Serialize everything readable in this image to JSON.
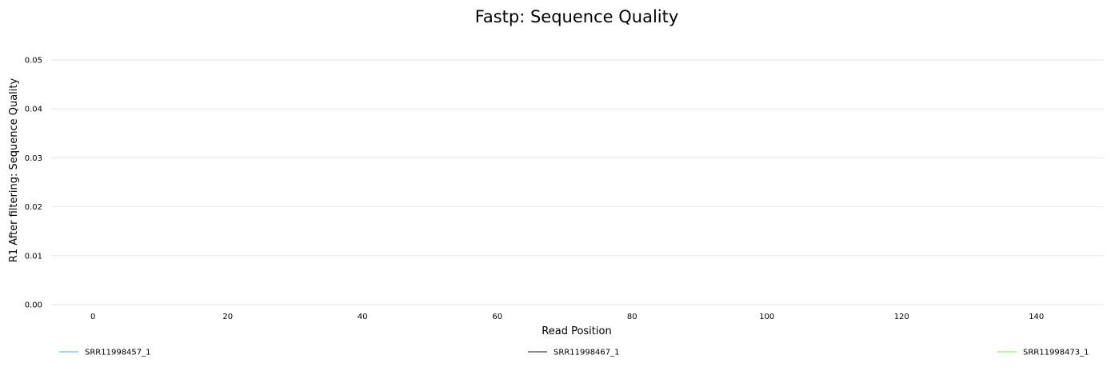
{
  "chart_data": {
    "type": "line",
    "title": "Fastp: Sequence Quality",
    "xlabel": "Read Position",
    "ylabel": "R1 After filtering: Sequence Quality",
    "xlim": [
      -6.2,
      150
    ],
    "ylim": [
      0,
      0.05
    ],
    "xticks": [
      0,
      20,
      40,
      60,
      80,
      100,
      120,
      140
    ],
    "xtick_labels": [
      "0",
      "20",
      "40",
      "60",
      "80",
      "100",
      "120",
      "140"
    ],
    "yticks": [
      0,
      0.01,
      0.02,
      0.03,
      0.04,
      0.05
    ],
    "ytick_labels": [
      "0.00",
      "0.01",
      "0.02",
      "0.03",
      "0.04",
      "0.05"
    ],
    "grid": "horizontal",
    "legend_position": "bottom",
    "series": [
      {
        "name": "SRR11998457_1",
        "color": "#7cb5ec",
        "x": [],
        "y": []
      },
      {
        "name": "SRR11998467_1",
        "color": "#434348",
        "x": [],
        "y": []
      },
      {
        "name": "SRR11998473_1",
        "color": "#90ed7d",
        "x": [],
        "y": []
      }
    ]
  }
}
